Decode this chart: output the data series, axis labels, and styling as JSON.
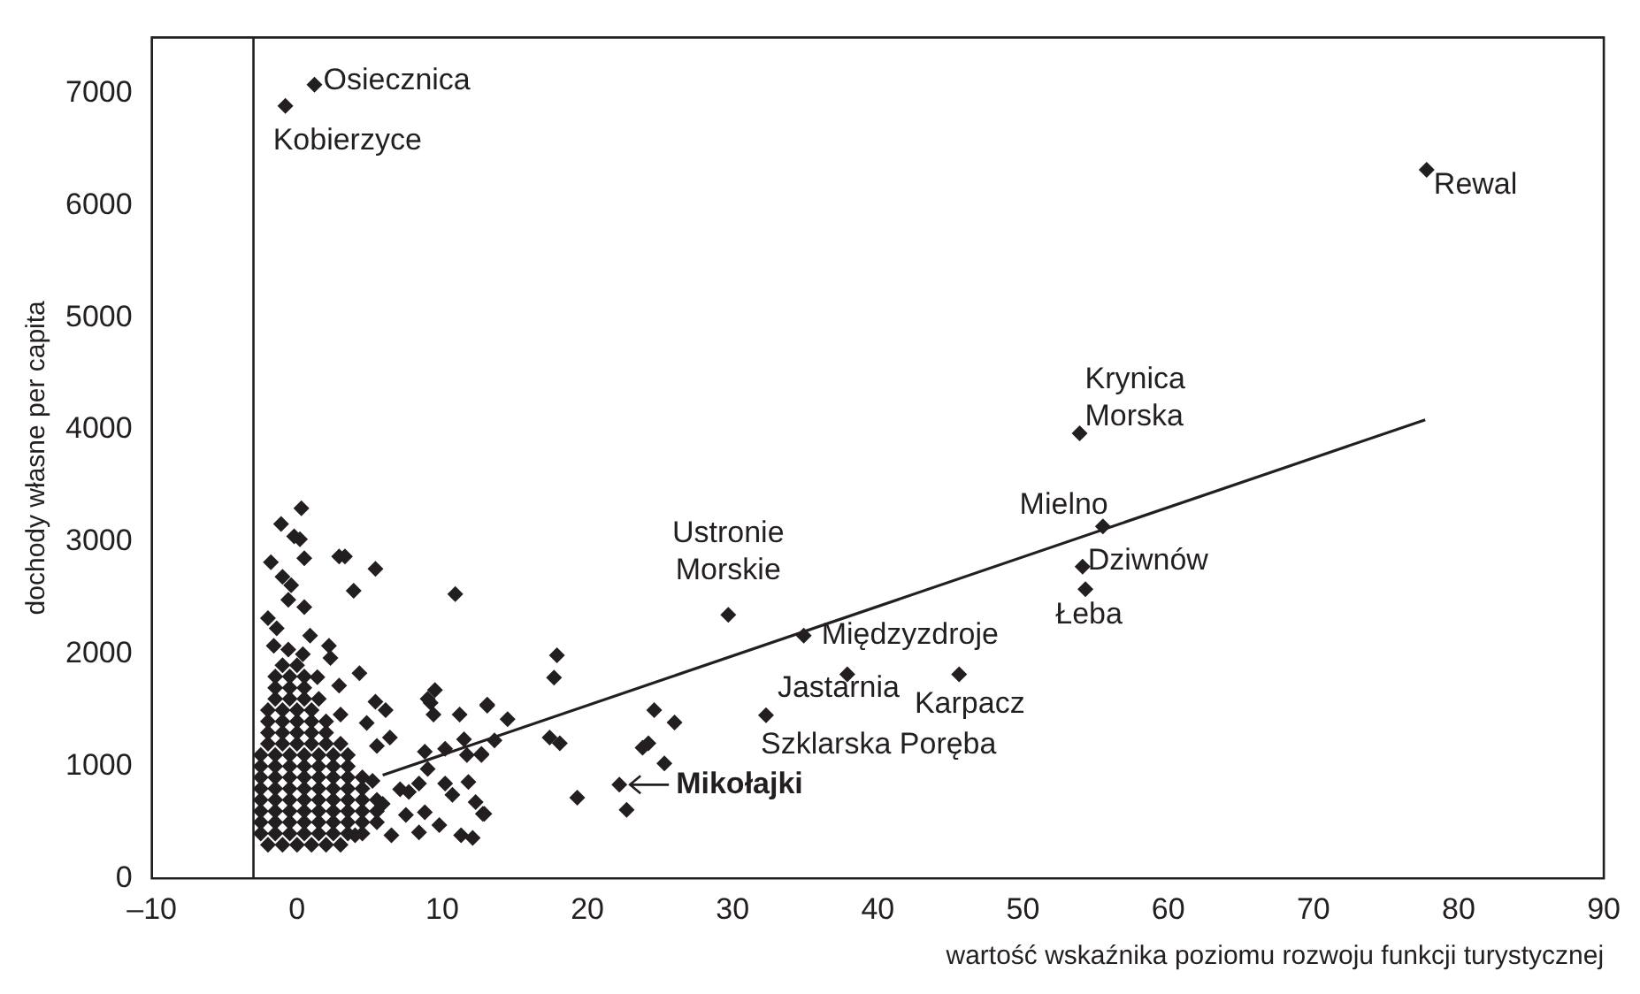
{
  "chart_data": {
    "type": "scatter",
    "xlabel": "wartość wskaźnika poziomu rozwoju funkcji turystycznej",
    "ylabel": "dochody własne per capita",
    "xlim": [
      -10,
      90
    ],
    "ylim": [
      0,
      7500
    ],
    "xticks": [
      {
        "value": -10,
        "label": "–10"
      },
      0,
      10,
      20,
      30,
      40,
      50,
      60,
      70,
      80,
      90
    ],
    "yticks": [
      0,
      1000,
      2000,
      3000,
      4000,
      5000,
      6000,
      7000
    ],
    "marker": "diamond",
    "series": [
      {
        "color": "#231f20",
        "x": [
          1.2,
          -0.8,
          77.8,
          53.9,
          55.5,
          54.1,
          54.3,
          34.9,
          29.7,
          37.9,
          45.6,
          32.3,
          22.2,
          17.9,
          17.7,
          13.1,
          14.5,
          13.6,
          12.7,
          17.4,
          18.1,
          24.6,
          26.0,
          24.2,
          23.8,
          25.3,
          19.3,
          22.7,
          12.8,
          12.3,
          12.1,
          0.3,
          -1.1,
          -0.2,
          0.2,
          -1.8,
          0.5,
          2.9,
          3.3,
          5.4,
          3.9,
          10.9,
          -1.0,
          -0.4,
          -0.6,
          0.5,
          -2.0,
          -1.4,
          0.9,
          -1.6,
          -0.6,
          2.2,
          2.3,
          0.4,
          4.3,
          2.9,
          1.4,
          5.4,
          6.1,
          3.0,
          9.2,
          9.5,
          9.0,
          9.4,
          11.2,
          13.1,
          6.4,
          5.5,
          4.8,
          8.8,
          10.2,
          11.5,
          11.7,
          12.7,
          9.0,
          8.4,
          10.2,
          11.8,
          7.1,
          7.7,
          10.7,
          8.8,
          9.8,
          12.9,
          8.4,
          11.3,
          6.5,
          4.0,
          7.5,
          5.9,
          5.2,
          -2,
          -1,
          0,
          1,
          2,
          3,
          -2.5,
          -1.5,
          -0.5,
          0.5,
          1.5,
          2.5,
          3.5,
          4.5,
          -2.5,
          -1.5,
          -0.5,
          0.5,
          1.5,
          2.5,
          3.5,
          4.5,
          5.5,
          -2.5,
          -1.5,
          -0.5,
          0.5,
          1.5,
          2.5,
          3.5,
          4.5,
          5.5,
          -2.5,
          -1.5,
          -0.5,
          0.5,
          1.5,
          2.5,
          3.5,
          4.5,
          5.5,
          -2.5,
          -1.5,
          -0.5,
          0.5,
          1.5,
          2.5,
          3.5,
          4.5,
          -2.5,
          -1.5,
          -0.5,
          0.5,
          1.5,
          2.5,
          3.5,
          4.5,
          -2.5,
          -1.5,
          -0.5,
          0.5,
          1.5,
          2.5,
          3.5,
          -2.5,
          -1.5,
          -0.5,
          0.5,
          1.5,
          2.5,
          3.5,
          -2,
          -1,
          0,
          1,
          2,
          3,
          -2,
          -1,
          0,
          1,
          2,
          -2,
          -1,
          0,
          1,
          2,
          -2,
          -1,
          0,
          1,
          -1.5,
          -0.5,
          0.5,
          1.5,
          -1.5,
          -0.5,
          0.5,
          -1.5,
          -0.5,
          0.5,
          -1,
          0
        ],
        "values": [
          7080,
          6890,
          6320,
          3970,
          3140,
          2780,
          2580,
          2165,
          2350,
          1820,
          1820,
          1455,
          835,
          1990,
          1790,
          1550,
          1420,
          1230,
          1110,
          1255,
          1205,
          1500,
          1390,
          1205,
          1165,
          1025,
          720,
          610,
          575,
          680,
          360,
          3300,
          3160,
          3050,
          3025,
          2820,
          2855,
          2870,
          2870,
          2760,
          2565,
          2535,
          2690,
          2615,
          2485,
          2420,
          2320,
          2230,
          2165,
          2075,
          2040,
          2075,
          1965,
          2000,
          1830,
          1720,
          1795,
          1575,
          1500,
          1460,
          1565,
          1680,
          1600,
          1460,
          1460,
          1540,
          1255,
          1180,
          1385,
          1130,
          1155,
          1240,
          1100,
          1100,
          975,
          845,
          845,
          860,
          795,
          770,
          745,
          590,
          475,
          575,
          410,
          385,
          385,
          385,
          565,
          665,
          870,
          300,
          300,
          300,
          300,
          300,
          300,
          400,
          400,
          400,
          400,
          400,
          400,
          400,
          400,
          500,
          500,
          500,
          500,
          500,
          500,
          500,
          500,
          500,
          600,
          600,
          600,
          600,
          600,
          600,
          600,
          600,
          600,
          700,
          700,
          700,
          700,
          700,
          700,
          700,
          700,
          700,
          800,
          800,
          800,
          800,
          800,
          800,
          800,
          800,
          900,
          900,
          900,
          900,
          900,
          900,
          900,
          900,
          1000,
          1000,
          1000,
          1000,
          1000,
          1000,
          1000,
          1100,
          1100,
          1100,
          1100,
          1100,
          1100,
          1100,
          1200,
          1200,
          1200,
          1200,
          1200,
          1200,
          1300,
          1300,
          1300,
          1300,
          1300,
          1400,
          1400,
          1400,
          1400,
          1400,
          1500,
          1500,
          1500,
          1500,
          1600,
          1600,
          1600,
          1600,
          1700,
          1700,
          1700,
          1800,
          1800,
          1800,
          1900,
          1900
        ]
      },
      {
        "type": "line",
        "color": "#231f20",
        "marker": "none",
        "x": [
          5.9,
          77.7
        ],
        "values": [
          920,
          4090
        ]
      }
    ],
    "ref_lines": [
      {
        "axis": "x",
        "value": -3,
        "color": "#231f20"
      }
    ],
    "annotations": [
      {
        "text": "Osiecznica",
        "x": 1.2,
        "y": 7080
      },
      {
        "text": "Kobierzyce",
        "x": -0.8,
        "y": 6890
      },
      {
        "text": "Rewal",
        "x": 77.8,
        "y": 6320
      },
      {
        "text": "Krynica Morska",
        "x": 53.9,
        "y": 3970
      },
      {
        "text": "Mielno",
        "x": 55.5,
        "y": 3140
      },
      {
        "text": "Dziwnów",
        "x": 54.1,
        "y": 2780
      },
      {
        "text": "Łeba",
        "x": 54.3,
        "y": 2580
      },
      {
        "text": "Międzyzdroje",
        "x": 34.9,
        "y": 2165
      },
      {
        "text": "Ustronie Morskie",
        "x": 29.7,
        "y": 2350
      },
      {
        "text": "Jastarnia",
        "x": 37.9,
        "y": 1820
      },
      {
        "text": "Karpacz",
        "x": 45.6,
        "y": 1820
      },
      {
        "text": "Szklarska Poręba",
        "x": 32.3,
        "y": 1455
      },
      {
        "text": "Mikołajki",
        "x": 22.2,
        "y": 835
      }
    ]
  }
}
